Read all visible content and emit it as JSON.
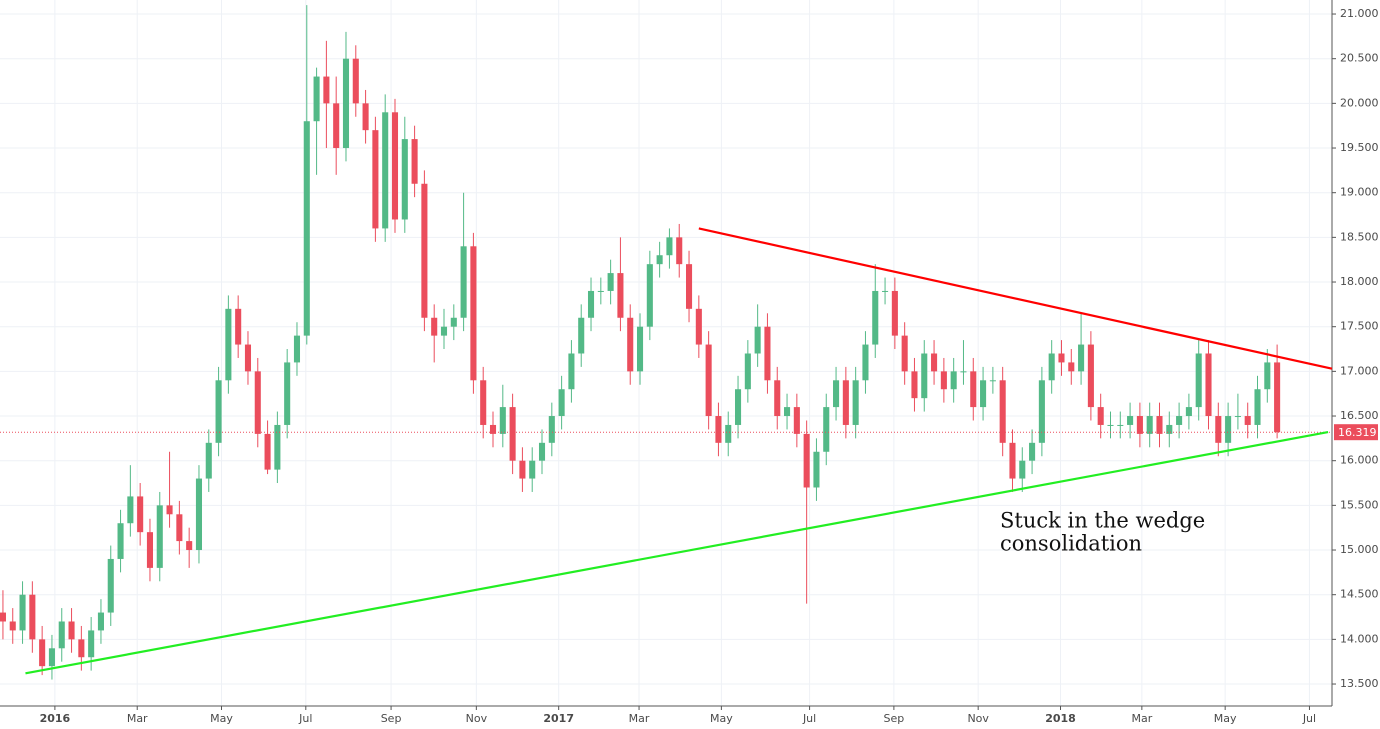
{
  "chart_data": {
    "type": "candlestick",
    "up_color": "#53b987",
    "down_color": "#eb4d5c",
    "grid": true,
    "xlim": [
      -0.3,
      135.6
    ],
    "ylim": [
      13.254,
      21.157
    ],
    "xticks": [
      {
        "value": 5.3,
        "label": "2016"
      },
      {
        "value": 13.7,
        "label": "Mar"
      },
      {
        "value": 22.3,
        "label": "May"
      },
      {
        "value": 30.9,
        "label": "Jul"
      },
      {
        "value": 39.6,
        "label": "Sep"
      },
      {
        "value": 48.3,
        "label": "Nov"
      },
      {
        "value": 56.7,
        "label": "2017"
      },
      {
        "value": 64.9,
        "label": "Mar"
      },
      {
        "value": 73.3,
        "label": "May"
      },
      {
        "value": 82.3,
        "label": "Jul"
      },
      {
        "value": 90.9,
        "label": "Sep"
      },
      {
        "value": 99.5,
        "label": "Nov"
      },
      {
        "value": 107.9,
        "label": "2018"
      },
      {
        "value": 116.2,
        "label": "Mar"
      },
      {
        "value": 124.7,
        "label": "May"
      },
      {
        "value": 133.3,
        "label": "Jul"
      }
    ],
    "yticks": [
      {
        "value": 13.5,
        "label": "13.500"
      },
      {
        "value": 14,
        "label": "14.000"
      },
      {
        "value": 14.5,
        "label": "14.500"
      },
      {
        "value": 15,
        "label": "15.000"
      },
      {
        "value": 15.5,
        "label": "15.500"
      },
      {
        "value": 16,
        "label": "16.000"
      },
      {
        "value": 16.5,
        "label": "16.500"
      },
      {
        "value": 17,
        "label": "17.000"
      },
      {
        "value": 17.5,
        "label": "17.500"
      },
      {
        "value": 18,
        "label": "18.000"
      },
      {
        "value": 18.5,
        "label": "18.500"
      },
      {
        "value": 19,
        "label": "19.000"
      },
      {
        "value": 19.5,
        "label": "19.500"
      },
      {
        "value": 20,
        "label": "20.000"
      },
      {
        "value": 20.5,
        "label": "20.500"
      },
      {
        "value": 21,
        "label": "21.000"
      }
    ],
    "candles": [
      [
        14.3,
        14.55,
        14.0,
        14.2
      ],
      [
        14.2,
        14.35,
        13.95,
        14.1
      ],
      [
        14.1,
        14.65,
        13.95,
        14.5
      ],
      [
        14.5,
        14.65,
        13.85,
        14.0
      ],
      [
        14.0,
        14.15,
        13.6,
        13.7
      ],
      [
        13.7,
        14.05,
        13.55,
        13.9
      ],
      [
        13.9,
        14.35,
        13.75,
        14.2
      ],
      [
        14.2,
        14.35,
        13.85,
        14.0
      ],
      [
        14.0,
        14.15,
        13.65,
        13.8
      ],
      [
        13.8,
        14.25,
        13.65,
        14.1
      ],
      [
        14.1,
        14.45,
        13.95,
        14.3
      ],
      [
        14.3,
        15.05,
        14.15,
        14.9
      ],
      [
        14.9,
        15.45,
        14.75,
        15.3
      ],
      [
        15.3,
        15.95,
        15.15,
        15.6
      ],
      [
        15.6,
        15.75,
        15.05,
        15.2
      ],
      [
        15.2,
        15.35,
        14.65,
        14.8
      ],
      [
        14.8,
        15.65,
        14.65,
        15.5
      ],
      [
        15.5,
        16.1,
        15.25,
        15.4
      ],
      [
        15.4,
        15.55,
        14.95,
        15.1
      ],
      [
        15.1,
        15.25,
        14.8,
        15.0
      ],
      [
        15.0,
        15.95,
        14.85,
        15.8
      ],
      [
        15.8,
        16.35,
        15.65,
        16.2
      ],
      [
        16.2,
        17.05,
        16.05,
        16.9
      ],
      [
        16.9,
        17.85,
        16.75,
        17.7
      ],
      [
        17.7,
        17.85,
        17.15,
        17.3
      ],
      [
        17.3,
        17.45,
        16.85,
        17.0
      ],
      [
        17.0,
        17.15,
        16.15,
        16.3
      ],
      [
        16.3,
        16.45,
        15.85,
        15.9
      ],
      [
        15.9,
        16.55,
        15.75,
        16.4
      ],
      [
        16.4,
        17.25,
        16.25,
        17.1
      ],
      [
        17.1,
        17.55,
        16.95,
        17.4
      ],
      [
        17.4,
        21.1,
        17.3,
        19.8
      ],
      [
        19.8,
        20.4,
        19.2,
        20.3
      ],
      [
        20.3,
        20.7,
        19.5,
        20.0
      ],
      [
        20.0,
        20.3,
        19.2,
        19.5
      ],
      [
        19.5,
        20.8,
        19.35,
        20.5
      ],
      [
        20.5,
        20.65,
        19.85,
        20.0
      ],
      [
        20.0,
        20.15,
        19.55,
        19.7
      ],
      [
        19.7,
        19.85,
        18.45,
        18.6
      ],
      [
        18.6,
        20.1,
        18.45,
        19.9
      ],
      [
        19.9,
        20.05,
        18.55,
        18.7
      ],
      [
        18.7,
        19.85,
        18.55,
        19.6
      ],
      [
        19.6,
        19.75,
        18.95,
        19.1
      ],
      [
        19.1,
        19.25,
        17.45,
        17.6
      ],
      [
        17.6,
        17.75,
        17.1,
        17.4
      ],
      [
        17.4,
        17.7,
        17.25,
        17.5
      ],
      [
        17.5,
        17.75,
        17.35,
        17.6
      ],
      [
        17.6,
        19.0,
        17.45,
        18.4
      ],
      [
        18.4,
        18.55,
        16.75,
        16.9
      ],
      [
        16.9,
        17.05,
        16.25,
        16.4
      ],
      [
        16.4,
        16.55,
        16.15,
        16.3
      ],
      [
        16.3,
        16.85,
        16.15,
        16.6
      ],
      [
        16.6,
        16.75,
        15.85,
        16.0
      ],
      [
        16.0,
        16.15,
        15.65,
        15.8
      ],
      [
        15.8,
        16.15,
        15.65,
        16.0
      ],
      [
        16.0,
        16.35,
        15.85,
        16.2
      ],
      [
        16.2,
        16.65,
        16.05,
        16.5
      ],
      [
        16.5,
        16.95,
        16.35,
        16.8
      ],
      [
        16.8,
        17.35,
        16.65,
        17.2
      ],
      [
        17.2,
        17.75,
        17.05,
        17.6
      ],
      [
        17.6,
        18.05,
        17.45,
        17.9
      ],
      [
        17.9,
        18.05,
        17.75,
        17.9
      ],
      [
        17.9,
        18.25,
        17.75,
        18.1
      ],
      [
        18.1,
        18.5,
        17.45,
        17.6
      ],
      [
        17.6,
        17.75,
        16.85,
        17.0
      ],
      [
        17.0,
        17.65,
        16.85,
        17.5
      ],
      [
        17.5,
        18.35,
        17.35,
        18.2
      ],
      [
        18.2,
        18.45,
        18.05,
        18.3
      ],
      [
        18.3,
        18.6,
        18.15,
        18.5
      ],
      [
        18.5,
        18.65,
        18.05,
        18.2
      ],
      [
        18.2,
        18.35,
        17.55,
        17.7
      ],
      [
        17.7,
        17.85,
        17.15,
        17.3
      ],
      [
        17.3,
        17.45,
        16.35,
        16.5
      ],
      [
        16.5,
        16.65,
        16.05,
        16.2
      ],
      [
        16.2,
        16.55,
        16.05,
        16.4
      ],
      [
        16.4,
        16.95,
        16.25,
        16.8
      ],
      [
        16.8,
        17.35,
        16.65,
        17.2
      ],
      [
        17.2,
        17.75,
        17.05,
        17.5
      ],
      [
        17.5,
        17.65,
        16.75,
        16.9
      ],
      [
        16.9,
        17.05,
        16.35,
        16.5
      ],
      [
        16.5,
        16.75,
        16.35,
        16.6
      ],
      [
        16.6,
        16.75,
        16.15,
        16.3
      ],
      [
        16.3,
        16.45,
        14.4,
        15.7
      ],
      [
        15.7,
        16.25,
        15.55,
        16.1
      ],
      [
        16.1,
        16.75,
        15.95,
        16.6
      ],
      [
        16.6,
        17.05,
        16.45,
        16.9
      ],
      [
        16.9,
        17.05,
        16.25,
        16.4
      ],
      [
        16.4,
        17.05,
        16.25,
        16.9
      ],
      [
        16.9,
        17.45,
        16.75,
        17.3
      ],
      [
        17.3,
        18.2,
        17.15,
        17.9
      ],
      [
        17.9,
        18.05,
        17.75,
        17.9
      ],
      [
        17.9,
        18.05,
        17.25,
        17.4
      ],
      [
        17.4,
        17.55,
        16.85,
        17.0
      ],
      [
        17.0,
        17.15,
        16.55,
        16.7
      ],
      [
        16.7,
        17.35,
        16.55,
        17.2
      ],
      [
        17.2,
        17.35,
        16.85,
        17.0
      ],
      [
        17.0,
        17.15,
        16.65,
        16.8
      ],
      [
        16.8,
        17.15,
        16.65,
        17.0
      ],
      [
        17.0,
        17.35,
        16.85,
        17.0
      ],
      [
        17.0,
        17.15,
        16.45,
        16.6
      ],
      [
        16.6,
        17.05,
        16.45,
        16.9
      ],
      [
        16.9,
        17.05,
        16.75,
        16.9
      ],
      [
        16.9,
        17.05,
        16.05,
        16.2
      ],
      [
        16.2,
        16.35,
        15.65,
        15.8
      ],
      [
        15.8,
        16.15,
        15.65,
        16.0
      ],
      [
        16.0,
        16.35,
        15.85,
        16.2
      ],
      [
        16.2,
        17.05,
        16.05,
        16.9
      ],
      [
        16.9,
        17.35,
        16.75,
        17.2
      ],
      [
        17.2,
        17.35,
        16.95,
        17.1
      ],
      [
        17.1,
        17.25,
        16.85,
        17.0
      ],
      [
        17.0,
        17.65,
        16.85,
        17.3
      ],
      [
        17.3,
        17.45,
        16.45,
        16.6
      ],
      [
        16.6,
        16.75,
        16.25,
        16.4
      ],
      [
        16.4,
        16.55,
        16.25,
        16.4
      ],
      [
        16.4,
        16.55,
        16.25,
        16.4
      ],
      [
        16.4,
        16.65,
        16.25,
        16.5
      ],
      [
        16.5,
        16.65,
        16.15,
        16.3
      ],
      [
        16.3,
        16.65,
        16.15,
        16.5
      ],
      [
        16.5,
        16.65,
        16.15,
        16.3
      ],
      [
        16.3,
        16.55,
        16.15,
        16.4
      ],
      [
        16.4,
        16.65,
        16.25,
        16.5
      ],
      [
        16.5,
        16.75,
        16.35,
        16.6
      ],
      [
        16.6,
        17.35,
        16.45,
        17.2
      ],
      [
        17.2,
        17.35,
        16.35,
        16.5
      ],
      [
        16.5,
        16.65,
        16.05,
        16.2
      ],
      [
        16.2,
        16.65,
        16.05,
        16.5
      ],
      [
        16.5,
        16.75,
        16.35,
        16.5
      ],
      [
        16.5,
        16.65,
        16.25,
        16.4
      ],
      [
        16.4,
        16.95,
        16.25,
        16.8
      ],
      [
        16.8,
        17.25,
        16.65,
        17.1
      ],
      [
        17.1,
        17.3,
        16.25,
        16.319
      ]
    ],
    "last_price": 16.319,
    "last_price_color": "#eb4d5c",
    "trend_lines": [
      {
        "color": "#ff0000",
        "points": [
          [
            71.0,
            18.6
          ],
          [
            135.6,
            17.03
          ]
        ]
      },
      {
        "color": "#22ee22",
        "points": [
          [
            2.3,
            13.62
          ],
          [
            135.2,
            16.32
          ]
        ]
      }
    ],
    "annotation": [
      "Stuck in the wedge",
      "consolidation"
    ]
  }
}
